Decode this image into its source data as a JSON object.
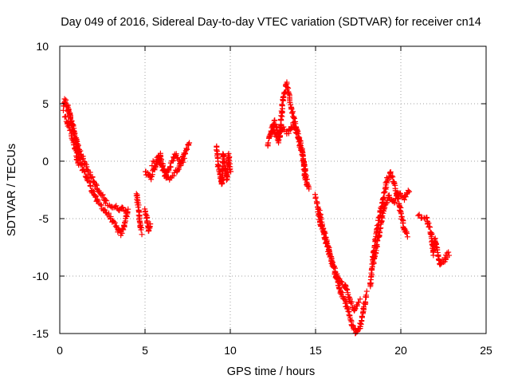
{
  "chart_data": {
    "type": "scatter",
    "title": "Day 049 of 2016, Sidereal Day-to-day VTEC variation (SDTVAR) for receiver cn14",
    "xlabel": "GPS time / hours",
    "ylabel": "SDTVAR / TECUs",
    "xlim": [
      0,
      25
    ],
    "ylim": [
      -15,
      10
    ],
    "xticks": [
      0,
      5,
      10,
      15,
      20,
      25
    ],
    "yticks": [
      -15,
      -10,
      -5,
      0,
      5,
      10
    ],
    "grid": true,
    "marker": "+",
    "color": "#ff0000",
    "series": [
      {
        "name": "SDTVAR",
        "segments": [
          {
            "x": [
              0.2,
              0.3,
              0.5,
              0.7,
              0.9,
              1.1,
              1.3,
              1.6,
              1.9,
              2.2,
              2.6,
              3.0,
              3.4,
              3.6,
              3.8,
              4.0
            ],
            "y": [
              4.5,
              5.3,
              4.6,
              3.2,
              2.0,
              0.5,
              -0.5,
              -1.5,
              -2.5,
              -3.5,
              -4.2,
              -5.0,
              -6.0,
              -6.3,
              -5.5,
              -4.2
            ]
          },
          {
            "x": [
              0.4,
              0.6,
              0.8,
              1.0,
              1.3,
              1.6,
              2.0,
              2.3,
              2.7,
              3.1,
              3.5,
              3.9
            ],
            "y": [
              4.8,
              4.0,
              2.8,
              1.6,
              0.5,
              -0.6,
              -1.8,
              -2.7,
              -3.5,
              -4.0,
              -4.1,
              -4.2
            ]
          },
          {
            "x": [
              0.3,
              0.5,
              0.7,
              0.9,
              1.1
            ],
            "y": [
              4.0,
              3.2,
              2.2,
              1.0,
              -0.3
            ]
          },
          {
            "x": [
              4.5,
              4.6,
              4.7,
              4.8
            ],
            "y": [
              -2.8,
              -4.0,
              -5.5,
              -6.2
            ]
          },
          {
            "x": [
              5.0,
              5.1,
              5.2,
              5.3
            ],
            "y": [
              -4.2,
              -5.0,
              -6.0,
              -5.5
            ]
          },
          {
            "x": [
              5.0,
              5.3,
              5.6,
              5.9,
              6.2,
              6.5,
              6.8,
              7.1,
              7.4,
              7.6
            ],
            "y": [
              -0.8,
              -1.5,
              -0.5,
              0.5,
              -1.2,
              -0.3,
              0.6,
              -0.2,
              1.0,
              1.5
            ]
          },
          {
            "x": [
              5.4,
              5.8,
              6.3,
              6.9,
              7.3
            ],
            "y": [
              -0.2,
              0.3,
              -1.6,
              -0.8,
              0.3
            ]
          },
          {
            "x": [
              9.2,
              9.3,
              9.4,
              9.5,
              9.6,
              9.7,
              9.8,
              9.9,
              10.0
            ],
            "y": [
              1.3,
              -0.5,
              -1.2,
              -2.0,
              0.6,
              -0.8,
              -1.5,
              0.5,
              -1.0
            ]
          },
          {
            "x": [
              12.2,
              12.4,
              12.6,
              12.9,
              13.1,
              13.3,
              13.6,
              13.9,
              14.2,
              14.4,
              14.6
            ],
            "y": [
              1.5,
              2.5,
              3.5,
              2.0,
              5.5,
              6.7,
              4.5,
              2.8,
              1.0,
              -1.5,
              -2.5
            ]
          },
          {
            "x": [
              12.3,
              12.5,
              12.8,
              13.0,
              13.4,
              13.7,
              14.0,
              14.3,
              14.5
            ],
            "y": [
              2.2,
              3.0,
              1.8,
              3.0,
              2.5,
              3.2,
              2.0,
              0.0,
              -2.0
            ]
          },
          {
            "x": [
              15.0,
              15.3,
              15.6,
              15.9,
              16.2,
              16.5,
              16.8,
              17.0,
              17.2,
              17.4,
              17.6,
              17.8,
              18.0
            ],
            "y": [
              -3.0,
              -5.5,
              -7.0,
              -8.5,
              -10.0,
              -11.5,
              -12.5,
              -13.5,
              -14.5,
              -15.0,
              -14.5,
              -13.0,
              -11.5
            ]
          },
          {
            "x": [
              15.2,
              15.5,
              15.8,
              16.1,
              16.4,
              16.7,
              17.0,
              17.3,
              17.6
            ],
            "y": [
              -4.2,
              -6.2,
              -7.8,
              -9.2,
              -10.5,
              -10.8,
              -12.0,
              -13.0,
              -12.2
            ]
          },
          {
            "x": [
              18.2,
              18.4,
              18.6,
              18.8,
              19.0,
              19.2,
              19.4,
              19.6,
              19.8,
              20.0,
              20.2,
              20.4
            ],
            "y": [
              -11.0,
              -8.0,
              -6.0,
              -4.5,
              -3.0,
              -1.5,
              -1.0,
              -2.0,
              -3.0,
              -4.5,
              -6.0,
              -6.5
            ]
          },
          {
            "x": [
              18.4,
              18.7,
              19.0,
              19.3,
              19.6,
              19.9,
              20.2,
              20.5
            ],
            "y": [
              -9.0,
              -6.5,
              -4.0,
              -3.0,
              -3.5,
              -2.8,
              -3.2,
              -2.5
            ]
          },
          {
            "x": [
              21.0,
              21.5,
              21.8,
              21.9,
              22.0,
              22.3,
              22.6,
              22.8
            ],
            "y": [
              -4.8,
              -5.0,
              -6.5,
              -8.0,
              -6.8,
              -9.0,
              -8.5,
              -8.0
            ]
          }
        ]
      }
    ]
  }
}
